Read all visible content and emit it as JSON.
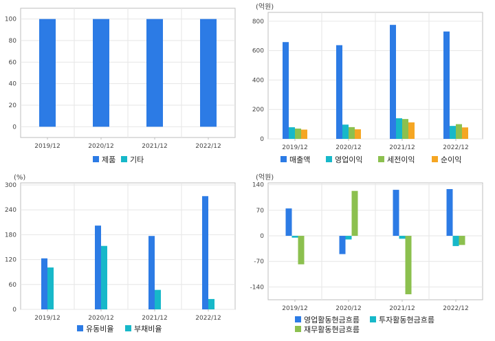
{
  "colors": {
    "blue": "#2c7be5",
    "cyan": "#17b8c9",
    "green": "#8cc04f",
    "orange": "#f5a623",
    "grid": "#e6e6e6",
    "frame": "#bdbdbd"
  },
  "chart_data": [
    {
      "type": "bar",
      "unit_label": "",
      "categories": [
        "2019/12",
        "2020/12",
        "2021/12",
        "2022/12"
      ],
      "series": [
        {
          "name": "제품",
          "color": "#2c7be5",
          "values": [
            100,
            100,
            100,
            100
          ]
        },
        {
          "name": "기타",
          "color": "#17b8c9",
          "values": [
            0,
            0,
            0,
            0
          ]
        }
      ],
      "ylim": [
        -10,
        110
      ],
      "yticks": [
        0,
        20,
        40,
        60,
        80,
        100
      ],
      "grid": true,
      "legend": "bottom"
    },
    {
      "type": "bar",
      "unit_label": "(억원)",
      "categories": [
        "2019/12",
        "2020/12",
        "2021/12",
        "2022/12"
      ],
      "series": [
        {
          "name": "매출액",
          "color": "#2c7be5",
          "values": [
            658,
            637,
            775,
            730
          ]
        },
        {
          "name": "영업이익",
          "color": "#17b8c9",
          "values": [
            79,
            97,
            140,
            88
          ]
        },
        {
          "name": "세전이익",
          "color": "#8cc04f",
          "values": [
            70,
            80,
            135,
            100
          ]
        },
        {
          "name": "순이익",
          "color": "#f5a623",
          "values": [
            63,
            65,
            112,
            78
          ]
        }
      ],
      "ylim": [
        0,
        860
      ],
      "yticks": [
        0,
        200,
        400,
        600,
        800
      ],
      "grid": true,
      "legend": "bottom"
    },
    {
      "type": "bar",
      "unit_label": "(%)",
      "categories": [
        "2019/12",
        "2020/12",
        "2021/12",
        "2022/12"
      ],
      "series": [
        {
          "name": "유동비율",
          "color": "#2c7be5",
          "values": [
            123,
            202,
            177,
            273
          ]
        },
        {
          "name": "부채비율",
          "color": "#17b8c9",
          "values": [
            101,
            153,
            47,
            25
          ]
        }
      ],
      "ylim": [
        0,
        305
      ],
      "yticks": [
        0,
        60,
        120,
        180,
        240,
        300
      ],
      "grid": true,
      "legend": "bottom"
    },
    {
      "type": "bar",
      "unit_label": "(억원)",
      "categories": [
        "2019/12",
        "2020/12",
        "2021/12",
        "2022/12"
      ],
      "series": [
        {
          "name": "영업활동현금흐름",
          "color": "#2c7be5",
          "values": [
            75,
            -50,
            126,
            128
          ]
        },
        {
          "name": "투자활동현금흐름",
          "color": "#17b8c9",
          "values": [
            -5,
            -10,
            -8,
            -28
          ]
        },
        {
          "name": "재무활동현금흐름",
          "color": "#8cc04f",
          "values": [
            -78,
            123,
            -160,
            -25
          ]
        }
      ],
      "ylim": [
        -175,
        145
      ],
      "yticks": [
        -140,
        -70,
        0,
        70,
        140
      ],
      "grid": true,
      "legend": "bottom"
    }
  ]
}
